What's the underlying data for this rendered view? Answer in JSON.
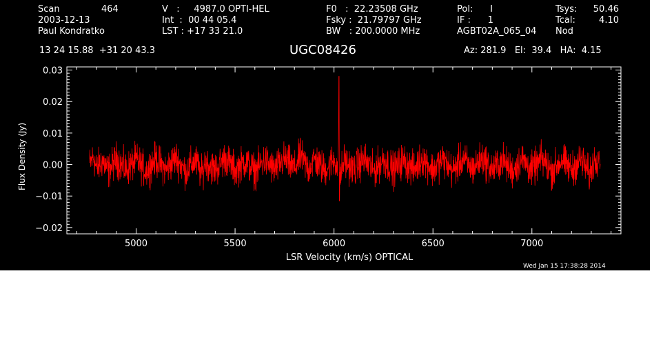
{
  "header": {
    "col1": [
      "Scan",
      "2003-12-13",
      "Paul Kondratko"
    ],
    "scan_number": "464",
    "col2": [
      "V   :     4987.0 OPTI-HEL",
      "Int  :  00 44 05.4",
      "LST : +17 33 21.0"
    ],
    "col3": [
      "F0   :  22.23508 GHz",
      "Fsky :  21.79797 GHz",
      "BW   : 200.0000 MHz"
    ],
    "col4": [
      "Pol:      I",
      "IF :      1",
      "AGBT02A_065_04"
    ],
    "col5_labels": [
      "Tsys:",
      "Tcal:",
      "Nod"
    ],
    "col5_values": [
      "50.46",
      "4.10",
      ""
    ],
    "coords": "13 24 15.88  +31 20 43.3",
    "source": "UGC08426",
    "azelha": "Az: 281.9   El:  39.4   HA:  4.15",
    "footer_date": "Wed Jan 15 17:38:28 2014"
  },
  "colors": {
    "background": "#000000",
    "axes": "#ffffff",
    "trace": "#ff0000"
  },
  "chart_data": {
    "type": "line",
    "xlabel": "LSR Velocity (km/s) OPTICAL",
    "ylabel": "Flux Density (Jy)",
    "xlim": [
      4650,
      7450
    ],
    "ylim": [
      -0.022,
      0.031
    ],
    "x_ticks": [
      5000,
      5500,
      6000,
      6500,
      7000
    ],
    "x_tick_labels": [
      "5000",
      "5500",
      "6000",
      "6500",
      "7000"
    ],
    "y_ticks": [
      -0.02,
      -0.01,
      0.0,
      0.01,
      0.02,
      0.03
    ],
    "y_tick_labels": [
      "−0.02",
      "−0.01",
      "0.00",
      "0.01",
      "0.02",
      "0.03"
    ],
    "series": [
      {
        "x_start": 4765,
        "x_end": 7345,
        "points": [
          [
            4765,
            0.0
          ],
          [
            4785,
            0.007
          ],
          [
            4800,
            -0.004
          ],
          [
            4830,
            0.004
          ],
          [
            4860,
            -0.006
          ],
          [
            4900,
            0.005
          ],
          [
            4950,
            -0.005
          ],
          [
            5000,
            0.004
          ],
          [
            5050,
            -0.006
          ],
          [
            5100,
            0.005
          ],
          [
            5150,
            -0.005
          ],
          [
            5200,
            0.006
          ],
          [
            5250,
            -0.006
          ],
          [
            5300,
            0.004
          ],
          [
            5330,
            -0.009
          ],
          [
            5350,
            0.003
          ],
          [
            5400,
            -0.005
          ],
          [
            5450,
            0.006
          ],
          [
            5500,
            -0.005
          ],
          [
            5550,
            0.003
          ],
          [
            5600,
            -0.006
          ],
          [
            5650,
            0.004
          ],
          [
            5700,
            -0.005
          ],
          [
            5750,
            0.005
          ],
          [
            5800,
            -0.004
          ],
          [
            5830,
            0.008
          ],
          [
            5870,
            -0.004
          ],
          [
            5900,
            0.005
          ],
          [
            5950,
            -0.005
          ],
          [
            6000,
            0.004
          ],
          [
            6020,
            -0.001
          ],
          [
            6025,
            0.028
          ],
          [
            6030,
            -0.012
          ],
          [
            6050,
            0.004
          ],
          [
            6100,
            -0.005
          ],
          [
            6150,
            0.005
          ],
          [
            6200,
            -0.006
          ],
          [
            6250,
            0.005
          ],
          [
            6300,
            -0.005
          ],
          [
            6350,
            0.004
          ],
          [
            6400,
            -0.005
          ],
          [
            6450,
            0.006
          ],
          [
            6500,
            -0.005
          ],
          [
            6550,
            0.005
          ],
          [
            6600,
            -0.006
          ],
          [
            6650,
            0.005
          ],
          [
            6700,
            -0.004
          ],
          [
            6750,
            0.006
          ],
          [
            6800,
            -0.005
          ],
          [
            6850,
            0.004
          ],
          [
            6900,
            -0.006
          ],
          [
            6950,
            0.005
          ],
          [
            7000,
            -0.005
          ],
          [
            7050,
            0.005
          ],
          [
            7100,
            -0.006
          ],
          [
            7150,
            0.004
          ],
          [
            7200,
            -0.005
          ],
          [
            7250,
            0.005
          ],
          [
            7290,
            -0.009
          ],
          [
            7320,
            0.005
          ],
          [
            7345,
            0.01
          ]
        ],
        "noise_rms": 0.0035
      }
    ]
  }
}
